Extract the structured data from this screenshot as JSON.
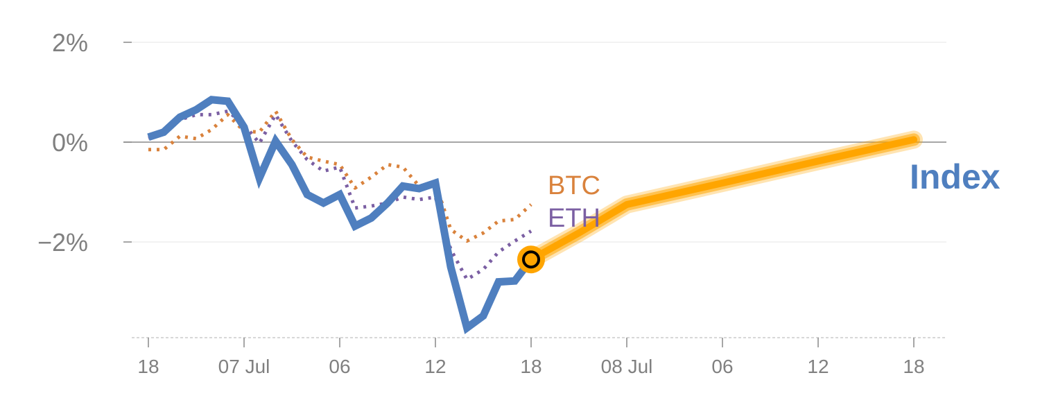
{
  "chart_data": {
    "type": "line",
    "title": "",
    "xlabel": "",
    "ylabel": "",
    "ylim": [
      -3.9,
      2.2
    ],
    "y_ticks": [
      {
        "value": 2,
        "label": "2%"
      },
      {
        "value": 0,
        "label": "0%"
      },
      {
        "value": -2,
        "label": "−2%"
      }
    ],
    "x_range": [
      0,
      80
    ],
    "x_ticks": [
      {
        "x": 0,
        "label": "18"
      },
      {
        "x": 10,
        "label": "07 Jul"
      },
      {
        "x": 20,
        "label": "06"
      },
      {
        "x": 30,
        "label": "12"
      },
      {
        "x": 40,
        "label": "18"
      },
      {
        "x": 50,
        "label": "08 Jul"
      },
      {
        "x": 60,
        "label": "06"
      },
      {
        "x": 70,
        "label": "12"
      },
      {
        "x": 80,
        "label": "18"
      }
    ],
    "grid": true,
    "series": [
      {
        "name": "Index",
        "color": "#4f7fbf",
        "style": "solid",
        "points": [
          [
            0,
            0.1
          ],
          [
            1.6,
            0.2
          ],
          [
            3.3,
            0.5
          ],
          [
            5,
            0.65
          ],
          [
            6.6,
            0.85
          ],
          [
            8.3,
            0.82
          ],
          [
            10,
            0.3
          ],
          [
            11.6,
            -0.72
          ],
          [
            13.3,
            0.02
          ],
          [
            15,
            -0.45
          ],
          [
            16.6,
            -1.05
          ],
          [
            18.3,
            -1.22
          ],
          [
            20,
            -1.05
          ],
          [
            21.6,
            -1.68
          ],
          [
            23.3,
            -1.52
          ],
          [
            25,
            -1.22
          ],
          [
            26.6,
            -0.88
          ],
          [
            28.3,
            -0.93
          ],
          [
            30,
            -0.82
          ],
          [
            31.6,
            -2.5
          ],
          [
            33.3,
            -3.72
          ],
          [
            35,
            -3.48
          ],
          [
            36.6,
            -2.8
          ],
          [
            38.3,
            -2.78
          ],
          [
            40,
            -2.35
          ]
        ]
      },
      {
        "name": "BTC",
        "color": "#d9823c",
        "style": "dotted",
        "points": [
          [
            0,
            -0.15
          ],
          [
            1.6,
            -0.15
          ],
          [
            3.3,
            0.12
          ],
          [
            5,
            0.07
          ],
          [
            6.6,
            0.25
          ],
          [
            8.3,
            0.55
          ],
          [
            10,
            0.22
          ],
          [
            11.6,
            0.2
          ],
          [
            13.3,
            0.62
          ],
          [
            15,
            0.05
          ],
          [
            16.6,
            -0.3
          ],
          [
            18.3,
            -0.38
          ],
          [
            20,
            -0.45
          ],
          [
            21.6,
            -0.92
          ],
          [
            23.3,
            -0.7
          ],
          [
            25,
            -0.45
          ],
          [
            26.6,
            -0.5
          ],
          [
            28.3,
            -0.88
          ],
          [
            30,
            -0.82
          ],
          [
            31.6,
            -1.75
          ],
          [
            33.3,
            -1.98
          ],
          [
            35,
            -1.82
          ],
          [
            36.6,
            -1.58
          ],
          [
            38.3,
            -1.55
          ],
          [
            40,
            -1.25
          ]
        ]
      },
      {
        "name": "ETH",
        "color": "#7b5fa3",
        "style": "dotted",
        "points": [
          [
            0,
            0.08
          ],
          [
            1.6,
            0.18
          ],
          [
            3.3,
            0.45
          ],
          [
            5,
            0.55
          ],
          [
            6.6,
            0.55
          ],
          [
            8.3,
            0.62
          ],
          [
            10,
            0.35
          ],
          [
            11.6,
            -0.02
          ],
          [
            13.3,
            0.55
          ],
          [
            15,
            0.02
          ],
          [
            16.6,
            -0.35
          ],
          [
            18.3,
            -0.58
          ],
          [
            20,
            -0.5
          ],
          [
            21.6,
            -1.32
          ],
          [
            23.3,
            -1.28
          ],
          [
            25,
            -1.22
          ],
          [
            26.6,
            -1.1
          ],
          [
            28.3,
            -1.15
          ],
          [
            30,
            -1.1
          ],
          [
            31.6,
            -2.15
          ],
          [
            33.3,
            -2.75
          ],
          [
            35,
            -2.55
          ],
          [
            36.6,
            -2.2
          ],
          [
            38.3,
            -1.98
          ],
          [
            40,
            -1.78
          ]
        ]
      },
      {
        "name": "forecast",
        "color": "#ffa500",
        "style": "band",
        "points": [
          [
            40,
            -2.35
          ],
          [
            45,
            -1.82
          ],
          [
            50,
            -1.25
          ],
          [
            60,
            -0.82
          ],
          [
            70,
            -0.38
          ],
          [
            80,
            0.05
          ]
        ]
      }
    ],
    "marker": {
      "x": 40,
      "y": -2.35,
      "color": "#ffa500"
    },
    "labels": {
      "btc": {
        "text": "BTC",
        "color": "#d9823c"
      },
      "eth": {
        "text": "ETH",
        "color": "#7b5fa3"
      },
      "index": {
        "text": "Index",
        "color": "#4f7fbf"
      }
    }
  }
}
